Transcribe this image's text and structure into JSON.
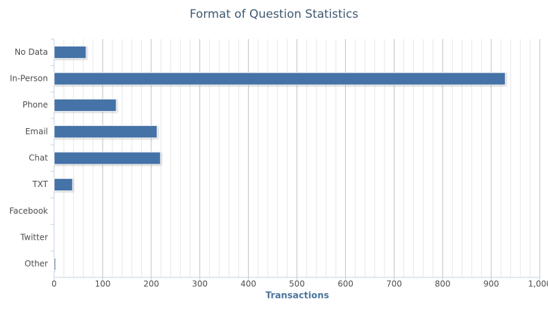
{
  "chart_data": {
    "type": "hbar",
    "title": "Format of Question Statistics",
    "x_label": "Transactions",
    "categories": [
      "No Data",
      "In-Person",
      "Phone",
      "Email",
      "Chat",
      "TXT",
      "Facebook",
      "Twitter",
      "Other"
    ],
    "values": [
      66,
      929,
      128,
      212,
      219,
      38,
      0,
      0,
      3
    ],
    "color": "#4572a7",
    "xlim": [
      0,
      1000
    ],
    "xticks": [
      0,
      100,
      200,
      300,
      400,
      500,
      600,
      700,
      800,
      900,
      {
        "value": 1000,
        "label": "1,000"
      }
    ],
    "grid": true
  }
}
